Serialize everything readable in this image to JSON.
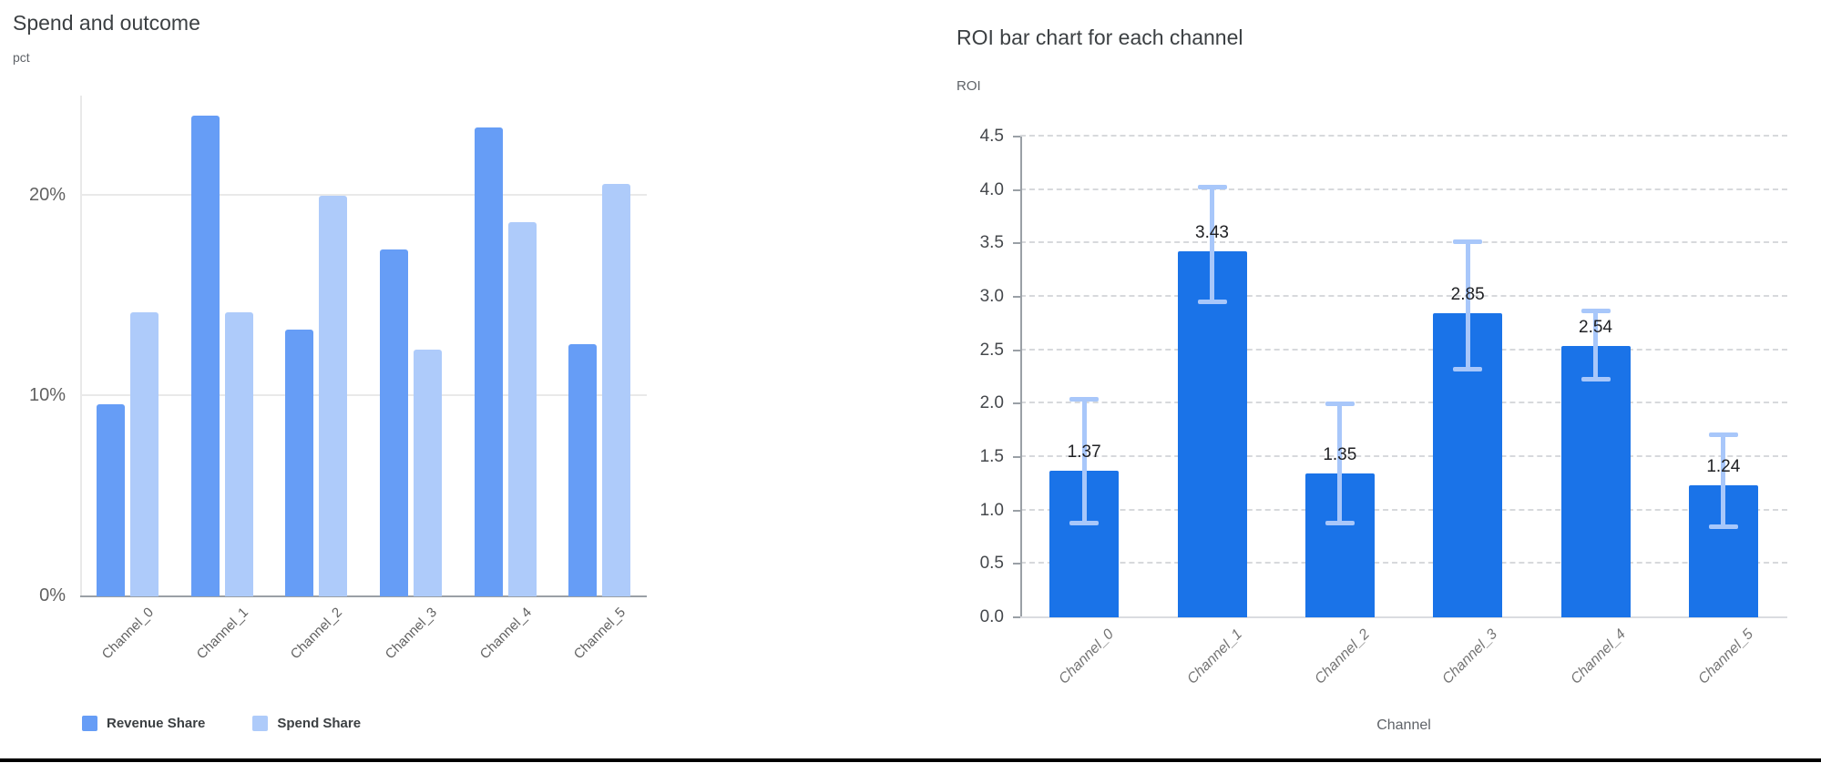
{
  "page": {
    "background": "#ffffff",
    "bottom_rule_color": "#000000"
  },
  "chart_data": [
    {
      "type": "bar",
      "title": "Spend and outcome",
      "ylabel": "pct",
      "xlabel": "",
      "categories": [
        "Channel_0",
        "Channel_1",
        "Channel_2",
        "Channel_3",
        "Channel_4",
        "Channel_5"
      ],
      "series": [
        {
          "name": "Revenue Share",
          "color": "#669df6",
          "values": [
            9.6,
            24.0,
            13.3,
            17.3,
            23.4,
            12.6
          ]
        },
        {
          "name": "Spend Share",
          "color": "#aecbfa",
          "values": [
            14.2,
            14.2,
            20.0,
            12.3,
            18.7,
            20.6
          ]
        }
      ],
      "ylim": [
        0,
        25
      ],
      "yticks": [
        {
          "value": 0,
          "label": "0%"
        },
        {
          "value": 10,
          "label": "10%"
        },
        {
          "value": 20,
          "label": "20%"
        }
      ],
      "grid": "solid",
      "legend_position": "bottom"
    },
    {
      "type": "bar",
      "title": "ROI bar chart for each channel",
      "ylabel": "ROI",
      "xlabel": "Channel",
      "categories": [
        "Channel_0",
        "Channel_1",
        "Channel_2",
        "Channel_3",
        "Channel_4",
        "Channel_5"
      ],
      "values": [
        1.37,
        3.43,
        1.35,
        2.85,
        2.54,
        1.24
      ],
      "bar_labels": [
        "1.37",
        "3.43",
        "1.35",
        "2.85",
        "2.54",
        "1.24"
      ],
      "error_low": [
        0.88,
        2.95,
        0.88,
        2.32,
        2.23,
        0.85
      ],
      "error_high": [
        2.04,
        4.03,
        2.0,
        3.52,
        2.87,
        1.71
      ],
      "bar_color": "#1a73e8",
      "error_color": "#a8c7fa",
      "ylim": [
        0,
        4.5
      ],
      "ytick_step": 0.5,
      "ytick_labels": [
        "0.0",
        "0.5",
        "1.0",
        "1.5",
        "2.0",
        "2.5",
        "3.0",
        "3.5",
        "4.0",
        "4.5"
      ],
      "grid": "dashed",
      "legend_position": "none"
    }
  ]
}
